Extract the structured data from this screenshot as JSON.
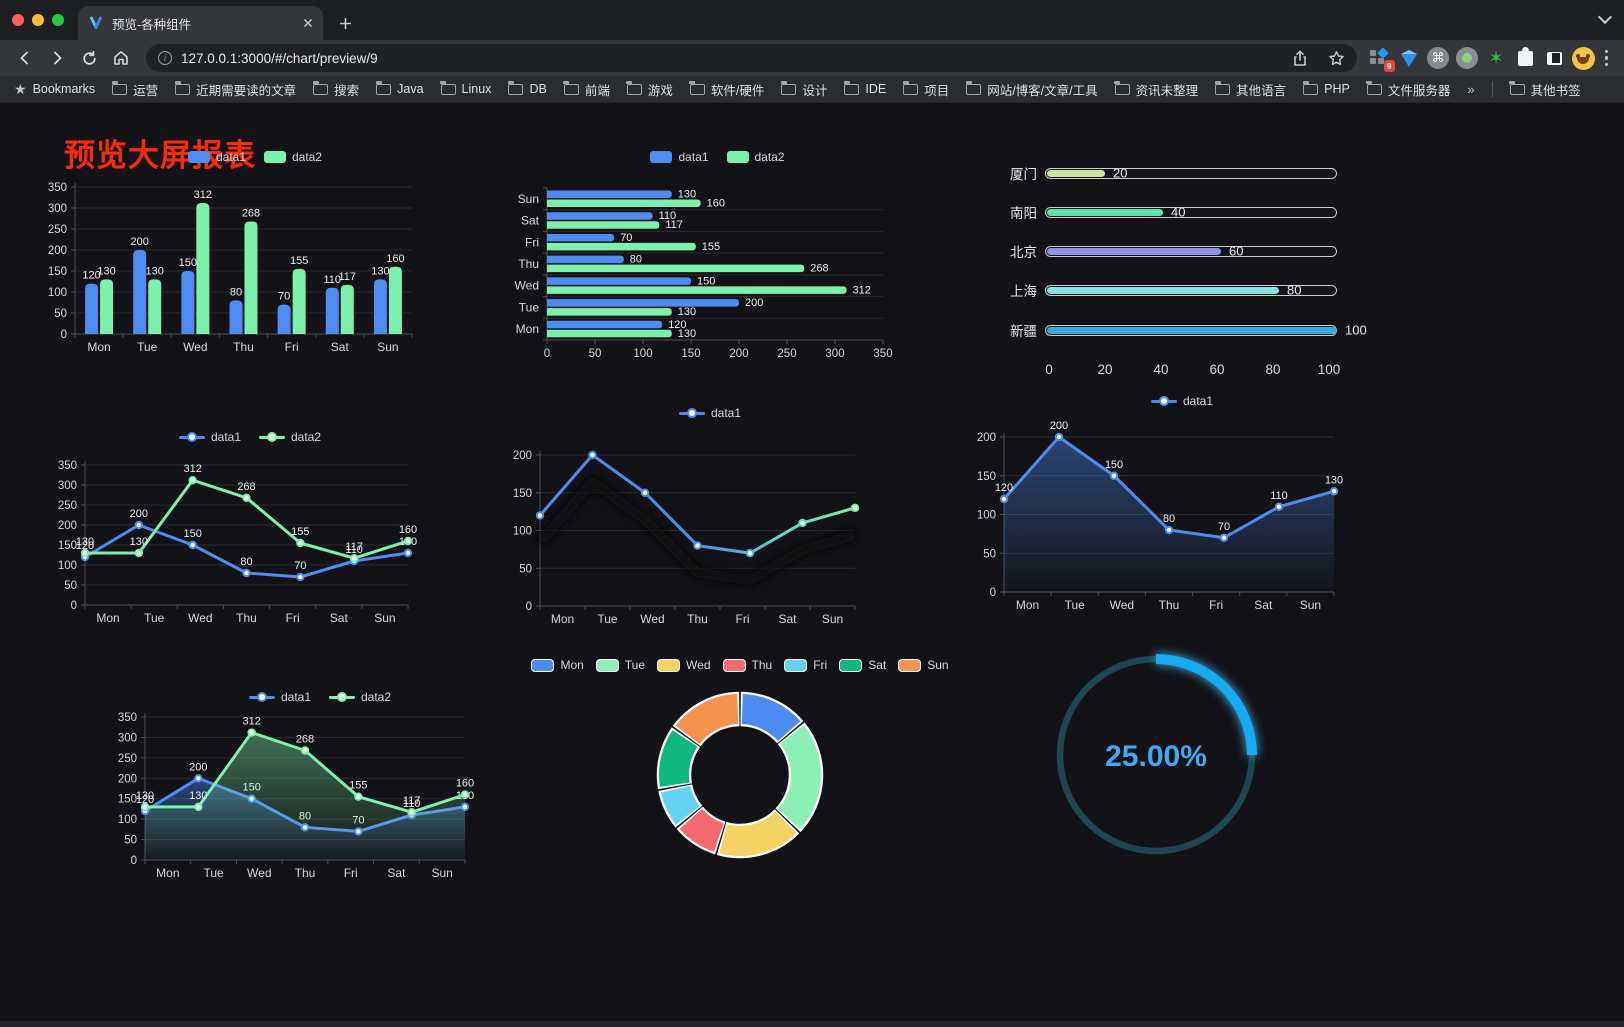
{
  "browser": {
    "tab": {
      "title": "预览-各种组件"
    },
    "url": "127.0.0.1:3000/#/chart/preview/9",
    "extensions": {
      "badge": "9"
    },
    "bookmarks": {
      "label": "Bookmarks",
      "items": [
        "运营",
        "近期需要读的文章",
        "搜索",
        "Java",
        "Linux",
        "DB",
        "前端",
        "游戏",
        "软件/硬件",
        "设计",
        "IDE",
        "项目",
        "网站/博客/文章/工具",
        "资讯未整理",
        "其他语言",
        "PHP",
        "文件服务器"
      ],
      "overflow": "»",
      "other": "其他书签"
    }
  },
  "page": {
    "title": "预览大屏报表"
  },
  "colors": {
    "series_blue": "#4e8cf2",
    "series_green": "#7df0ab",
    "axis_text": "#d4d7db",
    "value_label": "#ecedef",
    "grid_line": "#2a2b30",
    "axis_line": "#4d4f55",
    "title_red": "#fb2b05"
  },
  "chart_data": [
    {
      "id": "grouped-vertical-bar",
      "type": "bar",
      "categories": [
        "Mon",
        "Tue",
        "Wed",
        "Thu",
        "Fri",
        "Sat",
        "Sun"
      ],
      "series": [
        {
          "name": "data1",
          "color": "#4e8cf2",
          "values": [
            120,
            200,
            150,
            80,
            70,
            110,
            130
          ]
        },
        {
          "name": "data2",
          "color": "#7df0ab",
          "values": [
            130,
            130,
            312,
            268,
            155,
            117,
            160
          ]
        }
      ],
      "ylim": [
        0,
        350
      ],
      "yticks": [
        0,
        50,
        100,
        150,
        200,
        250,
        300,
        350
      ],
      "value_labels": true,
      "legend_position": "top"
    },
    {
      "id": "grouped-horizontal-bar",
      "type": "bar",
      "orientation": "horizontal",
      "categories": [
        "Mon",
        "Tue",
        "Wed",
        "Thu",
        "Fri",
        "Sat",
        "Sun"
      ],
      "display_order_top_to_bottom": [
        "Sun",
        "Sat",
        "Fri",
        "Thu",
        "Wed",
        "Tue",
        "Mon"
      ],
      "series": [
        {
          "name": "data1",
          "color": "#4e8cf2",
          "values": [
            120,
            200,
            150,
            80,
            70,
            110,
            130
          ]
        },
        {
          "name": "data2",
          "color": "#7df0ab",
          "values": [
            130,
            130,
            312,
            268,
            155,
            117,
            160
          ]
        }
      ],
      "xlim": [
        0,
        350
      ],
      "xticks": [
        0,
        50,
        100,
        150,
        200,
        250,
        300,
        350
      ],
      "value_labels": true,
      "legend_position": "top"
    },
    {
      "id": "progress-bars",
      "type": "bar",
      "orientation": "horizontal-progress",
      "items": [
        {
          "label": "厦门",
          "value": 20,
          "color": "#c9e59b"
        },
        {
          "label": "南阳",
          "value": 40,
          "color": "#5fe3ae"
        },
        {
          "label": "北京",
          "value": 60,
          "color": "#8b92e8"
        },
        {
          "label": "上海",
          "value": 80,
          "color": "#84e1e1"
        },
        {
          "label": "新疆",
          "value": 100,
          "color": "#36ace4"
        }
      ],
      "xlim": [
        0,
        100
      ],
      "xticks": [
        0,
        20,
        40,
        60,
        80,
        100
      ]
    },
    {
      "id": "two-series-line",
      "type": "line",
      "categories": [
        "Mon",
        "Tue",
        "Wed",
        "Thu",
        "Fri",
        "Sat",
        "Sun"
      ],
      "series": [
        {
          "name": "data1",
          "color": "#4e8cf2",
          "values": [
            120,
            200,
            150,
            80,
            70,
            110,
            130
          ]
        },
        {
          "name": "data2",
          "color": "#7df0ab",
          "values": [
            130,
            130,
            312,
            268,
            155,
            117,
            160
          ]
        }
      ],
      "ylim": [
        0,
        350
      ],
      "yticks": [
        0,
        50,
        100,
        150,
        200,
        250,
        300,
        350
      ],
      "value_labels": true,
      "legend_position": "top"
    },
    {
      "id": "gradient-line",
      "type": "line",
      "categories": [
        "Mon",
        "Tue",
        "Wed",
        "Thu",
        "Fri",
        "Sat",
        "Sun"
      ],
      "series": [
        {
          "name": "data1",
          "color": "#4e8cf2",
          "color_end": "#7df0ab",
          "values": [
            120,
            200,
            150,
            80,
            70,
            110,
            130
          ]
        }
      ],
      "ylim": [
        0,
        200
      ],
      "yticks": [
        0,
        50,
        100,
        150,
        200
      ],
      "value_labels": false,
      "line_gradient": true,
      "shadow": true,
      "legend_position": "top"
    },
    {
      "id": "area-line",
      "type": "line",
      "categories": [
        "Mon",
        "Tue",
        "Wed",
        "Thu",
        "Fri",
        "Sat",
        "Sun"
      ],
      "series": [
        {
          "name": "data1",
          "color": "#4e8cf2",
          "values": [
            120,
            200,
            150,
            80,
            70,
            110,
            130
          ],
          "area": true
        }
      ],
      "ylim": [
        0,
        200
      ],
      "yticks": [
        0,
        50,
        100,
        150,
        200
      ],
      "value_labels": true,
      "legend_position": "top"
    },
    {
      "id": "two-series-area-line",
      "type": "line",
      "categories": [
        "Mon",
        "Tue",
        "Wed",
        "Thu",
        "Fri",
        "Sat",
        "Sun"
      ],
      "series": [
        {
          "name": "data1",
          "color": "#4e8cf2",
          "values": [
            120,
            200,
            150,
            80,
            70,
            110,
            130
          ],
          "area": true
        },
        {
          "name": "data2",
          "color": "#7df0ab",
          "values": [
            130,
            130,
            312,
            268,
            155,
            117,
            160
          ],
          "area": true
        }
      ],
      "ylim": [
        0,
        350
      ],
      "yticks": [
        0,
        50,
        100,
        150,
        200,
        250,
        300,
        350
      ],
      "value_labels": true,
      "legend_position": "top"
    },
    {
      "id": "donut",
      "type": "pie",
      "inner_radius_ratio": 0.62,
      "border_color": "#ffffff",
      "items": [
        {
          "label": "Mon",
          "value": 120,
          "color": "#4e8bf0"
        },
        {
          "label": "Tue",
          "value": 200,
          "color": "#8df0b8"
        },
        {
          "label": "Wed",
          "value": 150,
          "color": "#f5d264"
        },
        {
          "label": "Thu",
          "value": 80,
          "color": "#f5696f"
        },
        {
          "label": "Fri",
          "value": 70,
          "color": "#64d2f5"
        },
        {
          "label": "Sat",
          "value": 110,
          "color": "#10b77f"
        },
        {
          "label": "Sun",
          "value": 130,
          "color": "#f79250"
        }
      ],
      "legend_position": "top"
    },
    {
      "id": "gauge",
      "type": "gauge",
      "value": 25,
      "max": 100,
      "display": "25.00%",
      "track_color": "#1d4651",
      "arc_color": "#17aaf2",
      "text_color": "#3fa9f5"
    }
  ]
}
